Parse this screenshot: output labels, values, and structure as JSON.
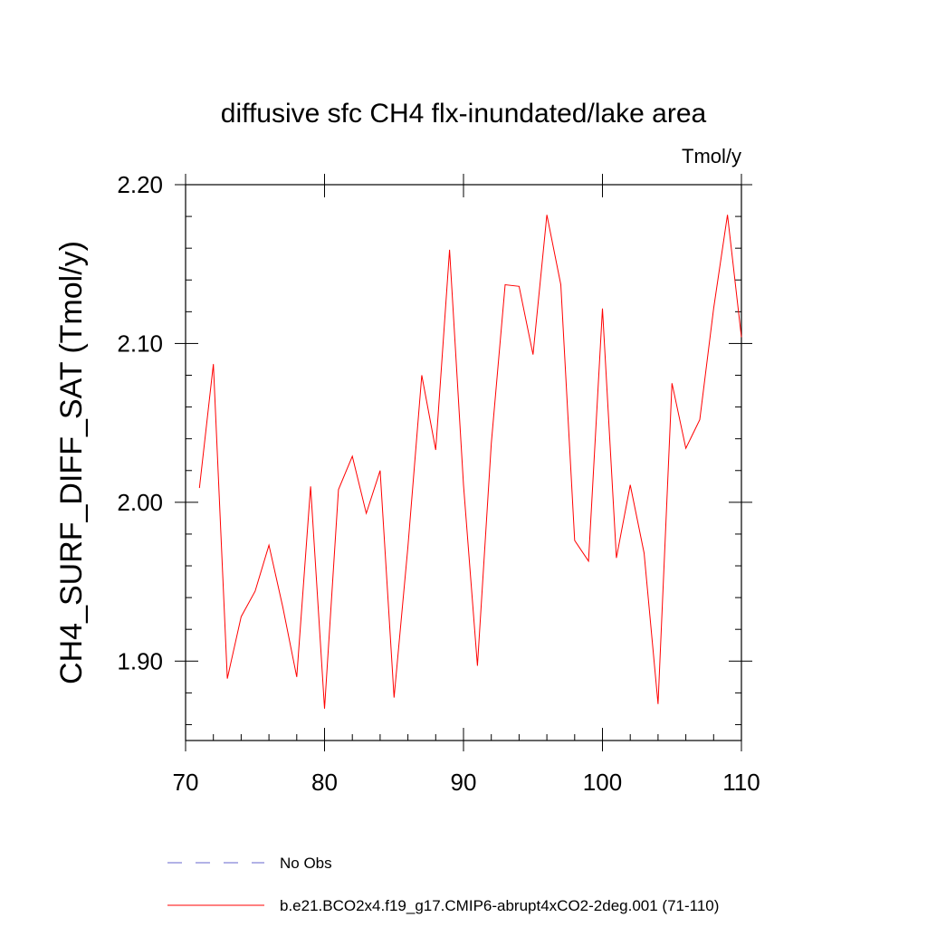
{
  "chart_data": {
    "type": "line",
    "title": "diffusive sfc CH4 flx-inundated/lake area",
    "units_label": "Tmol/y",
    "xlabel": "",
    "ylabel": "CH4_SURF_DIFF_SAT  (Tmol/y)",
    "xlim": [
      70,
      110
    ],
    "ylim": [
      1.85,
      2.2
    ],
    "x_ticks": [
      70,
      80,
      90,
      100,
      110
    ],
    "x_tick_labels": [
      "70",
      "80",
      "90",
      "100",
      "110"
    ],
    "y_ticks": [
      1.9,
      2.0,
      2.1,
      2.2
    ],
    "y_tick_labels": [
      "1.90",
      "2.00",
      "2.10",
      "2.20"
    ],
    "grid": false,
    "legend_position": "bottom",
    "series": [
      {
        "name": "No Obs",
        "color": "#6666cc",
        "style": "dashed",
        "x": [],
        "y": []
      },
      {
        "name": "b.e21.BCO2x4.f19_g17.CMIP6-abrupt4xCO2-2deg.001 (71-110)",
        "color": "#ff0000",
        "style": "solid",
        "x": [
          71,
          72,
          73,
          74,
          75,
          76,
          77,
          78,
          79,
          80,
          81,
          82,
          83,
          84,
          85,
          86,
          87,
          88,
          89,
          90,
          91,
          92,
          93,
          94,
          95,
          96,
          97,
          98,
          99,
          100,
          101,
          102,
          103,
          104,
          105,
          106,
          107,
          108,
          109,
          110
        ],
        "y": [
          2.009,
          2.087,
          1.889,
          1.928,
          1.944,
          1.973,
          1.934,
          1.89,
          2.01,
          1.87,
          2.008,
          2.029,
          1.993,
          2.02,
          1.877,
          1.972,
          2.08,
          2.033,
          2.159,
          2.011,
          1.897,
          2.037,
          2.137,
          2.136,
          2.093,
          2.181,
          2.137,
          1.976,
          1.963,
          2.122,
          1.965,
          2.011,
          1.968,
          1.873,
          2.075,
          2.034,
          2.052,
          2.122,
          2.181,
          2.104
        ]
      }
    ]
  }
}
